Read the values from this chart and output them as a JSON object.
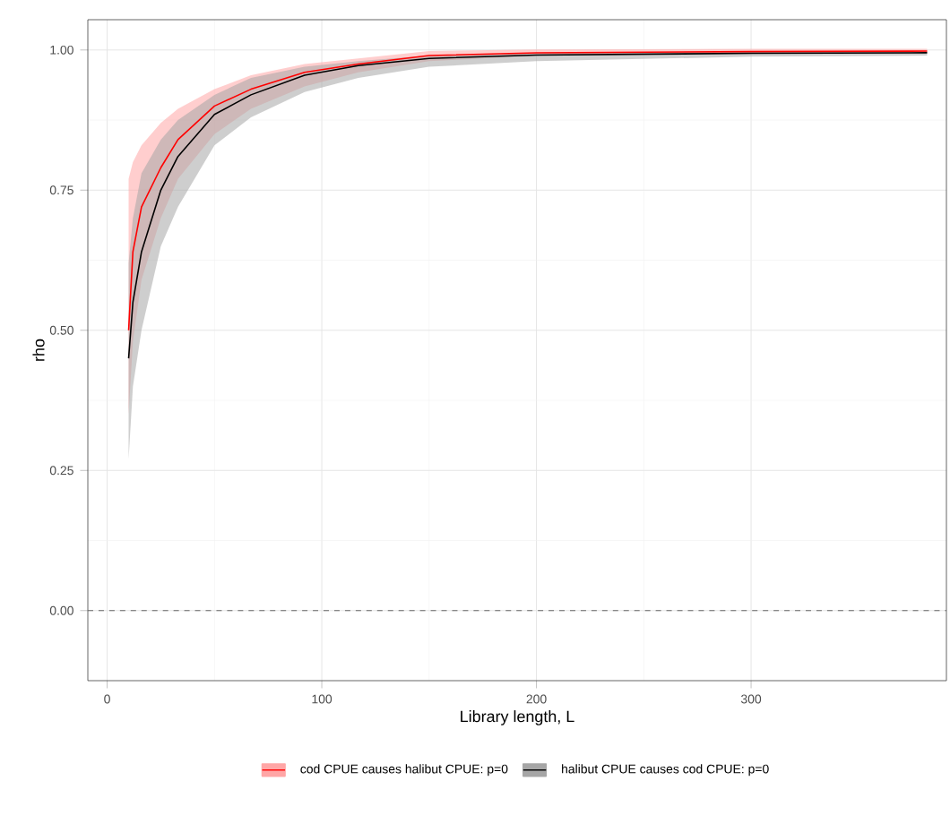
{
  "chart_data": {
    "type": "line",
    "xlabel": "Library length, L",
    "ylabel": "rho",
    "x": [
      10,
      12,
      16,
      25,
      33,
      50,
      67,
      92,
      117,
      150,
      200,
      300,
      382
    ],
    "series": [
      {
        "name": "cod CPUE causes halibut CPUE: p=0",
        "color": "#ff0000",
        "values": [
          0.5,
          0.64,
          0.72,
          0.79,
          0.84,
          0.9,
          0.93,
          0.96,
          0.975,
          0.99,
          0.995,
          0.997,
          0.998
        ],
        "lower": [
          0.35,
          0.48,
          0.59,
          0.7,
          0.77,
          0.85,
          0.895,
          0.935,
          0.96,
          0.98,
          0.99,
          0.993,
          0.995
        ],
        "upper": [
          0.77,
          0.8,
          0.83,
          0.87,
          0.895,
          0.93,
          0.955,
          0.975,
          0.985,
          0.998,
          1.001,
          1.002,
          1.002
        ]
      },
      {
        "name": "halibut CPUE causes cod CPUE: p=0",
        "color": "#000000",
        "values": [
          0.45,
          0.55,
          0.64,
          0.75,
          0.81,
          0.885,
          0.92,
          0.955,
          0.972,
          0.985,
          0.991,
          0.994,
          0.995
        ],
        "lower": [
          0.27,
          0.4,
          0.5,
          0.65,
          0.72,
          0.83,
          0.88,
          0.925,
          0.95,
          0.97,
          0.98,
          0.988,
          0.99
        ],
        "upper": [
          0.62,
          0.7,
          0.78,
          0.84,
          0.875,
          0.92,
          0.95,
          0.97,
          0.98,
          0.99,
          0.995,
          0.997,
          0.998
        ]
      }
    ],
    "xlim": [
      -9,
      391
    ],
    "ylim": [
      -0.125,
      1.054
    ],
    "xticks": [
      0,
      100,
      200,
      300
    ],
    "yticks": [
      {
        "value": 0,
        "label": "0.00"
      },
      {
        "value": 0.25,
        "label": "0.25"
      },
      {
        "value": 0.5,
        "label": "0.50"
      },
      {
        "value": 0.75,
        "label": "0.75"
      },
      {
        "value": 1,
        "label": "1.00"
      }
    ],
    "ref_lines": [
      {
        "axis": "y",
        "value": 0,
        "line_style": "dashed"
      }
    ],
    "grid": true,
    "legend": "bottom"
  }
}
